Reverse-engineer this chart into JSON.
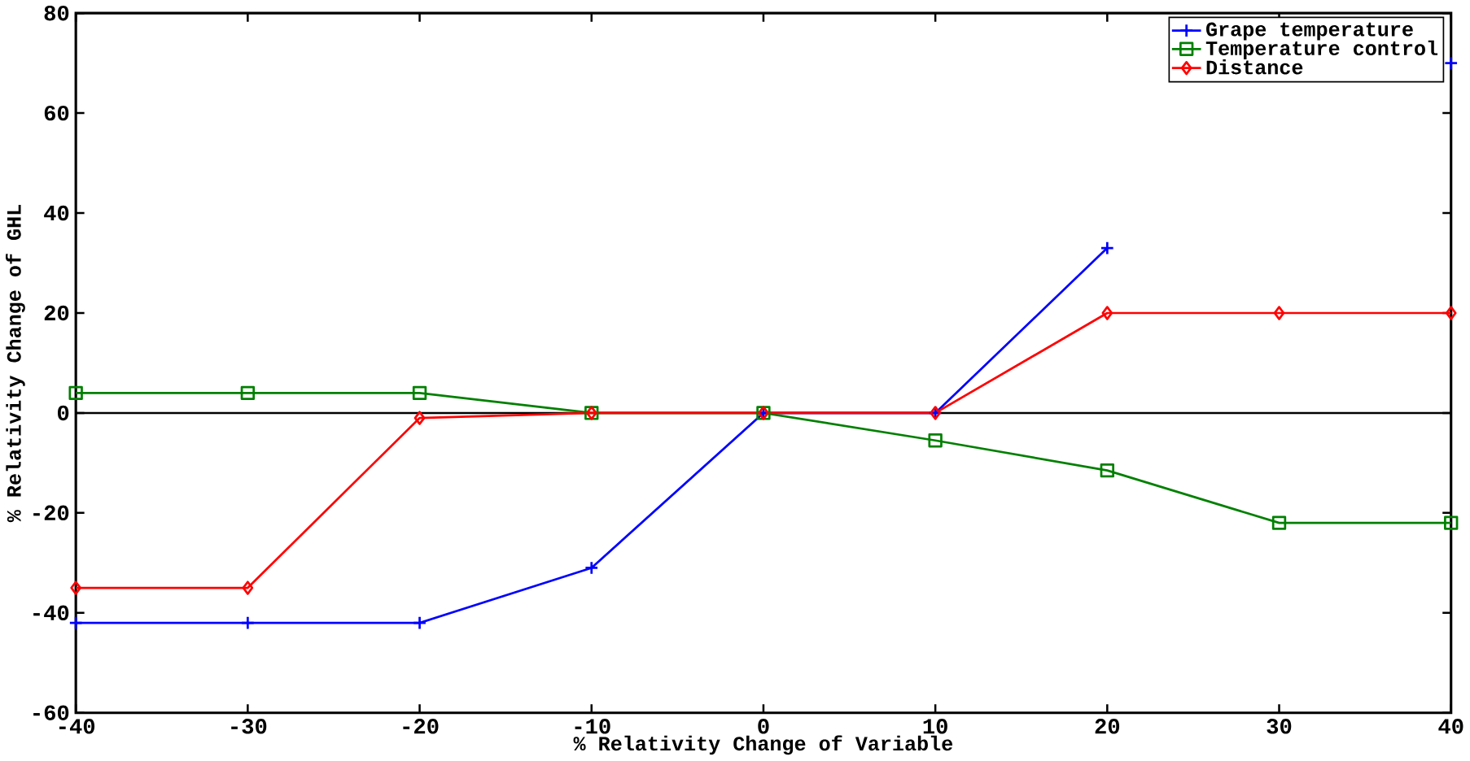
{
  "chart_data": {
    "type": "line",
    "xlabel": "% Relativity Change of Variable",
    "ylabel": "% Relativity Change of GHL",
    "x": [
      -40,
      -30,
      -20,
      -10,
      0,
      10,
      20,
      30,
      40
    ],
    "series": [
      {
        "name": "Grape temperature",
        "color": "#0000ff",
        "marker": "cross",
        "values": [
          -42,
          -42,
          -42,
          -31,
          0,
          0,
          33,
          null,
          70
        ]
      },
      {
        "name": "Temperature control",
        "color": "#008000",
        "marker": "square",
        "values": [
          4,
          4,
          4,
          0,
          0,
          -5.5,
          -11.5,
          -22,
          -22
        ]
      },
      {
        "name": "Distance",
        "color": "#ff0000",
        "marker": "diamond",
        "values": [
          -35,
          -35,
          -1,
          0,
          0,
          0,
          20,
          20,
          20
        ]
      }
    ],
    "xlim": [
      -40,
      40
    ],
    "xticks": [
      -40,
      -30,
      -20,
      -10,
      0,
      10,
      20,
      30,
      40
    ],
    "ylim": [
      -60,
      80
    ],
    "yticks": [
      -60,
      -40,
      -20,
      0,
      20,
      40,
      60,
      80
    ],
    "ref_lines": [
      {
        "axis": "y",
        "value": 0,
        "color": "#000000"
      }
    ],
    "legend": "top right",
    "grid": false
  }
}
